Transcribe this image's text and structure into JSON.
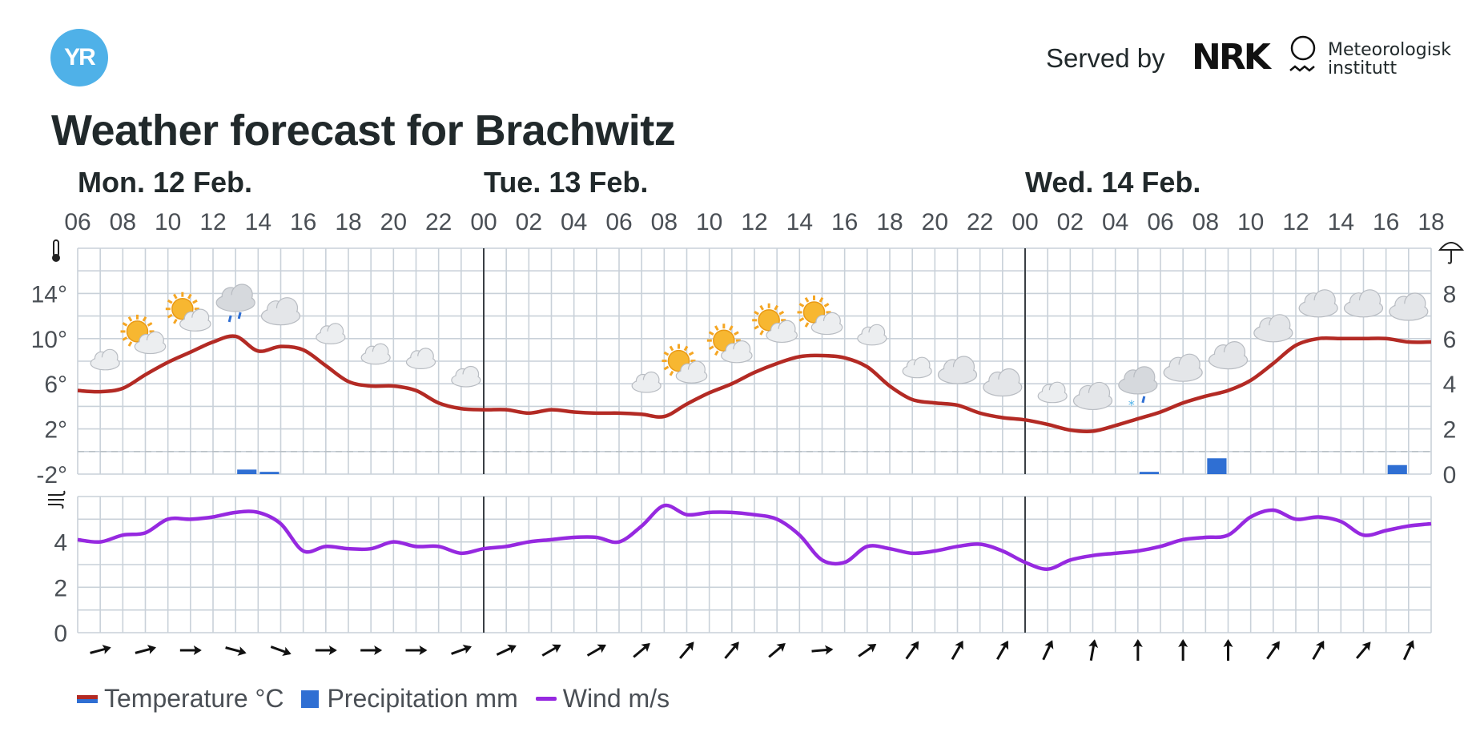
{
  "header": {
    "logo_text": "YR",
    "served_by": "Served by",
    "nrk_logo": "NRK",
    "met_line1": "Meteorologisk",
    "met_line2": "institutt",
    "title": "Weather forecast for Brachwitz"
  },
  "legend": {
    "temperature": "Temperature °C",
    "precipitation": "Precipitation mm",
    "wind": "Wind m/s"
  },
  "colors": {
    "temperature": "#b32a24",
    "temperature_cold": "#2f6fd3",
    "precipitation": "#2f6fd3",
    "wind": "#9629e0",
    "grid": "#c9d1d9",
    "day_separator": "#3a3f44"
  },
  "chart_data": {
    "type": "line",
    "day_labels": [
      "Mon. 12 Feb.",
      "Tue. 13 Feb.",
      "Wed. 14 Feb."
    ],
    "day_start_hours": [
      0,
      18,
      42
    ],
    "hour_labels": [
      "06",
      "08",
      "10",
      "12",
      "14",
      "16",
      "18",
      "20",
      "22",
      "00",
      "02",
      "04",
      "06",
      "08",
      "10",
      "12",
      "14",
      "16",
      "18",
      "20",
      "22",
      "00",
      "02",
      "04",
      "06",
      "08",
      "10",
      "12",
      "14",
      "16",
      "18"
    ],
    "time_range_hours": [
      0,
      60
    ],
    "temp_axis": {
      "ticks": [
        "14°",
        "10°",
        "6°",
        "2°",
        "-2°"
      ],
      "tick_values": [
        14,
        10,
        6,
        2,
        -2
      ],
      "ylim": [
        -2,
        18
      ]
    },
    "precip_axis": {
      "ticks": [
        "8",
        "6",
        "4",
        "2",
        "0"
      ],
      "tick_values": [
        8,
        6,
        4,
        2,
        0
      ],
      "ylim": [
        0,
        10
      ]
    },
    "wind_axis": {
      "ticks": [
        "4",
        "2",
        "0"
      ],
      "tick_values": [
        4,
        2,
        0
      ],
      "ylim": [
        0,
        6
      ]
    },
    "temperature": {
      "name": "Temperature °C",
      "hours": [
        0,
        1,
        2,
        3,
        4,
        5,
        6,
        7,
        8,
        9,
        10,
        11,
        12,
        13,
        14,
        15,
        16,
        17,
        18,
        19,
        20,
        21,
        22,
        23,
        24,
        25,
        26,
        27,
        28,
        29,
        30,
        31,
        32,
        33,
        34,
        35,
        36,
        37,
        38,
        39,
        40,
        41,
        42,
        43,
        44,
        45,
        46,
        47,
        48,
        49,
        50,
        51,
        52,
        53,
        54,
        55,
        56,
        57,
        58,
        59,
        60
      ],
      "values": [
        5.4,
        5.3,
        5.6,
        6.8,
        7.9,
        8.8,
        9.7,
        10.2,
        8.9,
        9.3,
        9.0,
        7.6,
        6.2,
        5.8,
        5.8,
        5.4,
        4.3,
        3.8,
        3.7,
        3.7,
        3.4,
        3.7,
        3.5,
        3.4,
        3.4,
        3.3,
        3.1,
        4.2,
        5.2,
        6.0,
        7.0,
        7.8,
        8.4,
        8.5,
        8.3,
        7.5,
        5.8,
        4.6,
        4.3,
        4.1,
        3.4,
        3.0,
        2.8,
        2.4,
        1.9,
        1.8,
        2.3,
        2.9,
        3.5,
        4.3,
        4.9,
        5.4,
        6.3,
        7.8,
        9.4,
        10.0,
        10.0,
        10.0,
        10.0,
        9.7,
        9.7
      ]
    },
    "precipitation": {
      "name": "Precipitation mm",
      "bars": [
        {
          "hour": 7,
          "value": 0.2
        },
        {
          "hour": 8,
          "value": 0.1
        },
        {
          "hour": 47,
          "value": 0.1
        },
        {
          "hour": 50,
          "value": 0.7
        },
        {
          "hour": 58,
          "value": 0.4
        }
      ]
    },
    "wind": {
      "name": "Wind m/s",
      "hours": [
        0,
        1,
        2,
        3,
        4,
        5,
        6,
        7,
        8,
        9,
        10,
        11,
        12,
        13,
        14,
        15,
        16,
        17,
        18,
        19,
        20,
        21,
        22,
        23,
        24,
        25,
        26,
        27,
        28,
        29,
        30,
        31,
        32,
        33,
        34,
        35,
        36,
        37,
        38,
        39,
        40,
        41,
        42,
        43,
        44,
        45,
        46,
        47,
        48,
        49,
        50,
        51,
        52,
        53,
        54,
        55,
        56,
        57,
        58,
        59,
        60
      ],
      "values": [
        4.1,
        4.0,
        4.3,
        4.4,
        5.0,
        5.0,
        5.1,
        5.3,
        5.3,
        4.8,
        3.6,
        3.8,
        3.7,
        3.7,
        4.0,
        3.8,
        3.8,
        3.5,
        3.7,
        3.8,
        4.0,
        4.1,
        4.2,
        4.2,
        4.0,
        4.7,
        5.6,
        5.2,
        5.3,
        5.3,
        5.2,
        5.0,
        4.3,
        3.2,
        3.1,
        3.8,
        3.7,
        3.5,
        3.6,
        3.8,
        3.9,
        3.6,
        3.1,
        2.8,
        3.2,
        3.4,
        3.5,
        3.6,
        3.8,
        4.1,
        4.2,
        4.3,
        5.1,
        5.4,
        5.0,
        5.1,
        4.9,
        4.3,
        4.5,
        4.7,
        4.8
      ]
    },
    "weather_symbols": {
      "hours": [
        1,
        3,
        5,
        7,
        9,
        11,
        13,
        15,
        17,
        19,
        21,
        23,
        25,
        27,
        29,
        31,
        33,
        35,
        37,
        39,
        41,
        43,
        45,
        47,
        49,
        51,
        53,
        55,
        57,
        59
      ],
      "symbols": [
        "partly-cloudy-night",
        "partly-cloudy-day",
        "partly-cloudy-day",
        "cloudy-rain",
        "cloudy",
        "partly-cloudy-night",
        "partly-cloudy-night",
        "partly-cloudy-night",
        "partly-cloudy-night",
        "clear-night",
        "clear-night",
        "clear-night",
        "partly-cloudy-night",
        "partly-cloudy-day",
        "partly-cloudy-day",
        "partly-cloudy-day",
        "partly-cloudy-day",
        "partly-cloudy-night",
        "partly-cloudy-night",
        "cloudy",
        "cloudy",
        "partly-cloudy-night",
        "cloudy",
        "cloudy-sleet",
        "cloudy",
        "cloudy",
        "cloudy",
        "cloudy",
        "cloudy",
        "cloudy"
      ]
    },
    "wind_direction_arrows": {
      "hours": [
        1,
        3,
        5,
        7,
        9,
        11,
        13,
        15,
        17,
        19,
        21,
        23,
        25,
        27,
        29,
        31,
        33,
        35,
        37,
        39,
        41,
        43,
        45,
        47,
        49,
        51,
        53,
        55,
        57,
        59
      ],
      "directions_deg": [
        255,
        255,
        270,
        285,
        290,
        270,
        270,
        270,
        250,
        245,
        240,
        240,
        230,
        220,
        220,
        230,
        265,
        235,
        215,
        210,
        210,
        205,
        190,
        180,
        180,
        180,
        215,
        210,
        220,
        205
      ]
    }
  }
}
